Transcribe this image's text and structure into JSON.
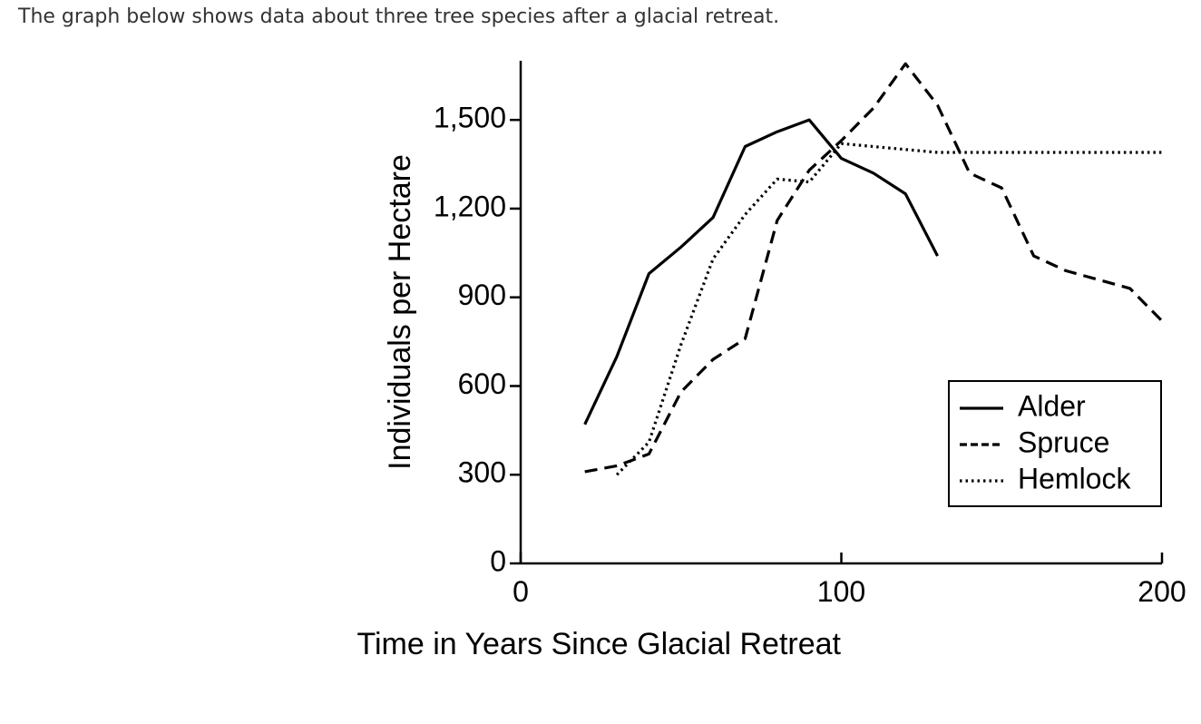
{
  "intro": "The graph below shows data about three tree species after a glacial retreat.",
  "chart_data": {
    "type": "line",
    "xlabel": "Time in Years Since Glacial Retreat",
    "ylabel": "Individuals per Hectare",
    "x": [
      20,
      30,
      40,
      50,
      60,
      70,
      80,
      90,
      100,
      110,
      120,
      130,
      140,
      150,
      160,
      170,
      180,
      190,
      200
    ],
    "series": [
      {
        "name": "Alder",
        "color": "#000000",
        "style": "solid",
        "values": [
          470,
          700,
          980,
          1070,
          1170,
          1410,
          1460,
          1500,
          1370,
          1320,
          1250,
          1040,
          null,
          null,
          null,
          null,
          null,
          null,
          null
        ]
      },
      {
        "name": "Spruce",
        "color": "#000000",
        "style": "dashed",
        "values": [
          310,
          330,
          370,
          580,
          690,
          760,
          1160,
          1330,
          1430,
          1540,
          1690,
          1550,
          1320,
          1270,
          1040,
          990,
          960,
          930,
          820
        ]
      },
      {
        "name": "Hemlock",
        "color": "#000000",
        "style": "dotted",
        "values": [
          null,
          300,
          410,
          740,
          1030,
          1180,
          1300,
          1290,
          1420,
          1410,
          1400,
          1390,
          1390,
          1390,
          1390,
          1390,
          1390,
          1390,
          1390
        ]
      }
    ],
    "xlim": [
      0,
      200
    ],
    "ylim": [
      0,
      1700
    ],
    "xticks": [
      0,
      100,
      200
    ],
    "yticks": [
      0,
      300,
      600,
      900,
      {
        "value": 1200,
        "label": "1,200"
      },
      {
        "value": 1500,
        "label": "1,500"
      }
    ],
    "legend": "lower right"
  }
}
